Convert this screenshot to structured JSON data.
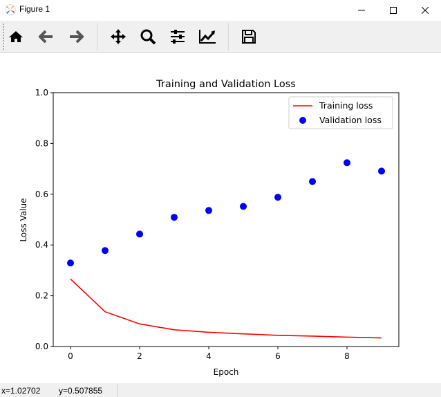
{
  "window": {
    "title": "Figure 1"
  },
  "toolbar": {
    "buttons": [
      {
        "name": "home-icon"
      },
      {
        "name": "back-arrow-icon"
      },
      {
        "name": "forward-arrow-icon"
      },
      {
        "name": "pan-move-icon"
      },
      {
        "name": "zoom-magnifier-icon"
      },
      {
        "name": "configure-subplots-icon"
      },
      {
        "name": "edit-axis-curve-icon"
      },
      {
        "name": "save-floppy-icon"
      }
    ]
  },
  "status": {
    "x": "x=1.02702",
    "y": "y=0.507855"
  },
  "chart_data": {
    "type": "line",
    "title": "Training and Validation Loss",
    "xlabel": "Epoch",
    "ylabel": "Loss Value",
    "xlim": [
      -0.5,
      9.5
    ],
    "ylim": [
      0,
      1.0
    ],
    "xticks": [
      0,
      2,
      4,
      6,
      8
    ],
    "xtick_labels": [
      "0",
      "2",
      "4",
      "6",
      "8"
    ],
    "yticks": [
      0,
      0.2,
      0.4,
      0.6,
      0.8,
      1.0
    ],
    "ytick_labels": [
      "0.0",
      "0.2",
      "0.4",
      "0.6",
      "0.8",
      "1.0"
    ],
    "grid": false,
    "legend_position": "top-right",
    "x": [
      0,
      1,
      2,
      3,
      4,
      5,
      6,
      7,
      8,
      9
    ],
    "series": [
      {
        "name": "Training loss",
        "style": "line",
        "color": "#ff0000",
        "values": [
          0.266,
          0.137,
          0.089,
          0.066,
          0.056,
          0.05,
          0.044,
          0.041,
          0.037,
          0.034
        ]
      },
      {
        "name": "Validation loss",
        "style": "markers",
        "color": "#0000ff",
        "values": [
          0.329,
          0.378,
          0.443,
          0.509,
          0.536,
          0.552,
          0.588,
          0.65,
          0.724,
          0.691
        ]
      }
    ]
  }
}
